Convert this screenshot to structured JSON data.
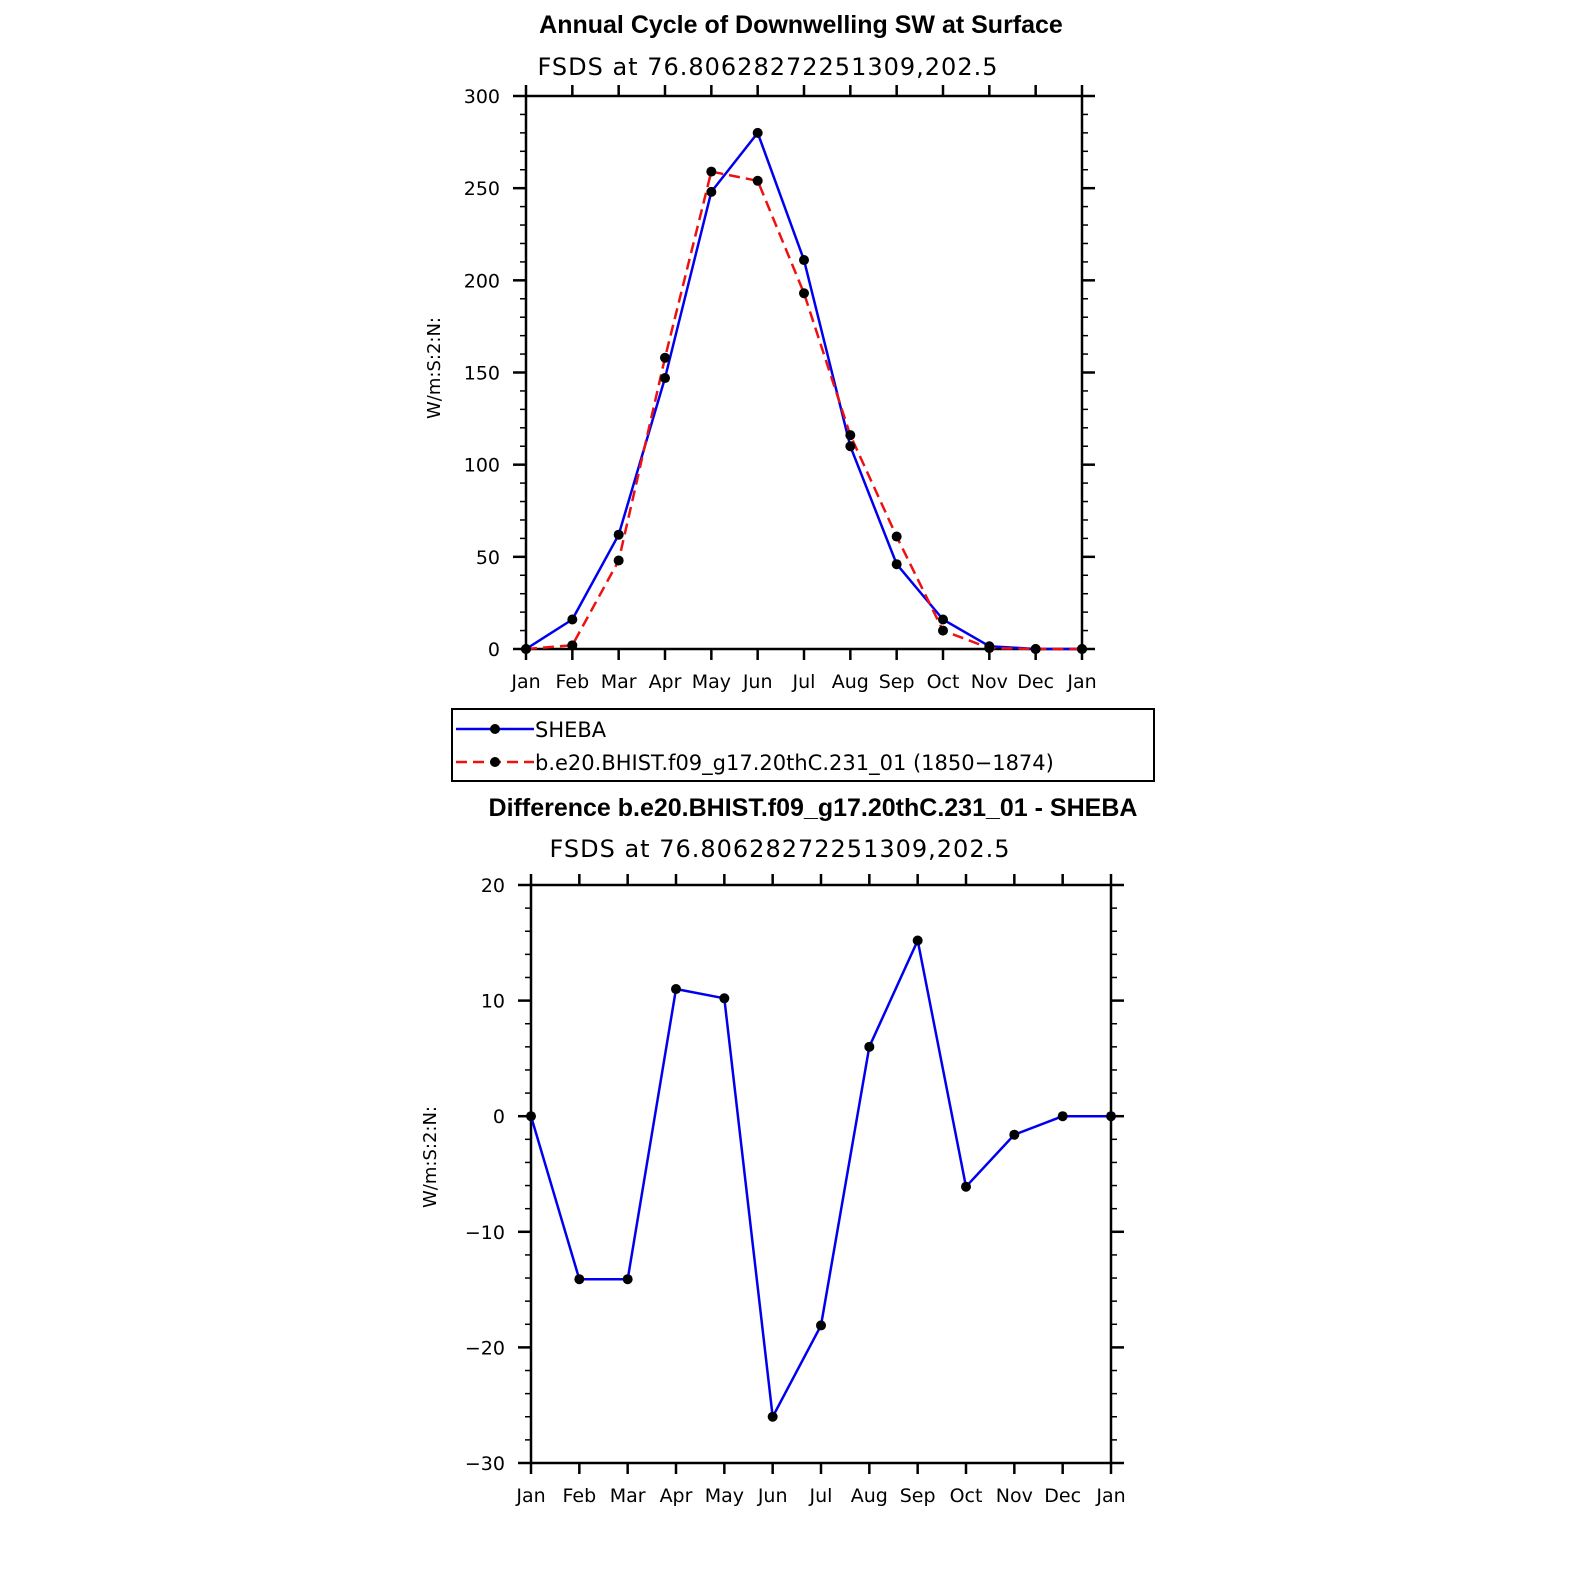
{
  "chart_data": [
    {
      "type": "line",
      "title": "Annual Cycle of Downwelling SW at Surface",
      "subtitle": "FSDS at 76.80628272251309,202.5",
      "xlabel": "",
      "ylabel": "W/m:S:2:N:",
      "categories": [
        "Jan",
        "Feb",
        "Mar",
        "Apr",
        "May",
        "Jun",
        "Jul",
        "Aug",
        "Sep",
        "Oct",
        "Nov",
        "Dec",
        "Jan"
      ],
      "ylim": [
        0,
        300
      ],
      "yticks": [
        0,
        50,
        100,
        150,
        200,
        250,
        300
      ],
      "grid": false,
      "legend_position": "below",
      "series": [
        {
          "name": "SHEBA",
          "color": "#0000ee",
          "line_style": "solid",
          "values": [
            0,
            16,
            62,
            147,
            248,
            280,
            211,
            110,
            46,
            16,
            1.5,
            0,
            0
          ]
        },
        {
          "name": "b.e20.BHIST.f09_g17.20thC.231_01 (1850−1874)",
          "color": "#ee1111",
          "line_style": "dashed",
          "values": [
            0,
            2,
            48,
            158,
            259,
            254,
            193,
            116,
            61,
            10,
            0.5,
            0,
            0
          ]
        }
      ]
    },
    {
      "type": "line",
      "title": "Difference b.e20.BHIST.f09_g17.20thC.231_01 - SHEBA",
      "subtitle": "FSDS at 76.80628272251309,202.5",
      "xlabel": "",
      "ylabel": "W/m:S:2:N:",
      "categories": [
        "Jan",
        "Feb",
        "Mar",
        "Apr",
        "May",
        "Jun",
        "Jul",
        "Aug",
        "Sep",
        "Oct",
        "Nov",
        "Dec",
        "Jan"
      ],
      "ylim": [
        -30,
        20
      ],
      "yticks": [
        -30,
        -20,
        -10,
        0,
        10,
        20
      ],
      "ytick_labels": [
        "−30",
        "−20",
        "−10",
        "0",
        "10",
        "20"
      ],
      "grid": false,
      "series": [
        {
          "color": "#0000ee",
          "line_style": "solid",
          "values": [
            0,
            -14.1,
            -14.1,
            11,
            10.2,
            -26,
            -18.1,
            6,
            15.2,
            -6.1,
            -1.6,
            0,
            0
          ]
        }
      ]
    }
  ]
}
